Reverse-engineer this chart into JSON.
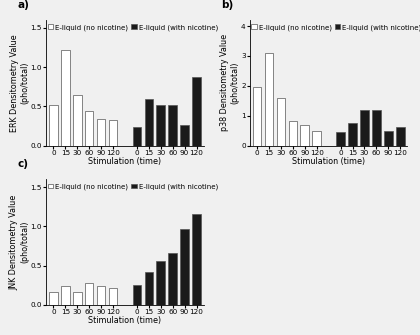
{
  "panel_a": {
    "title": "a)",
    "ylabel": "ERK Densitometry Value\n(pho/total)",
    "xlabel": "Stimulation (time)",
    "xlabels": [
      "0",
      "15",
      "30",
      "60",
      "90",
      "120",
      "0",
      "15",
      "30",
      "60",
      "90",
      "120"
    ],
    "white_bars": [
      0.52,
      1.22,
      0.65,
      0.44,
      0.34,
      0.33
    ],
    "black_bars": [
      0.24,
      0.6,
      0.52,
      0.52,
      0.26,
      0.88
    ],
    "ylim": [
      0,
      1.6
    ],
    "yticks": [
      0.0,
      0.5,
      1.0,
      1.5
    ]
  },
  "panel_b": {
    "title": "b)",
    "ylabel": "p38 Densitometry Value\n(pho/total)",
    "xlabel": "Stimulation (time)",
    "xlabels": [
      "0",
      "15",
      "30",
      "60",
      "90",
      "120",
      "0",
      "15",
      "30",
      "60",
      "90",
      "120"
    ],
    "white_bars": [
      1.95,
      3.1,
      1.58,
      0.82,
      0.7,
      0.5
    ],
    "black_bars": [
      0.46,
      0.76,
      1.18,
      1.18,
      0.5,
      0.62
    ],
    "ylim": [
      0,
      4.2
    ],
    "yticks": [
      0,
      1,
      2,
      3,
      4
    ]
  },
  "panel_c": {
    "title": "c)",
    "ylabel": "JNK Densitometry Value\n(pho/total)",
    "xlabel": "Stimulation (time)",
    "xlabels": [
      "0",
      "15",
      "30",
      "60",
      "90",
      "120",
      "0",
      "15",
      "30",
      "60",
      "90",
      "120"
    ],
    "white_bars": [
      0.16,
      0.24,
      0.16,
      0.28,
      0.24,
      0.22
    ],
    "black_bars": [
      0.25,
      0.42,
      0.56,
      0.66,
      0.97,
      1.16
    ],
    "ylim": [
      0,
      1.6
    ],
    "yticks": [
      0.0,
      0.5,
      1.0,
      1.5
    ]
  },
  "legend_white": "E-liquid (no nicotine)",
  "legend_black": "E-liquid (with nicotine)",
  "bar_width": 0.72,
  "white_color": "#ffffff",
  "black_color": "#1a1a1a",
  "edge_color": "#555555",
  "bg_color": "#f0f0f0",
  "ax_bg_color": "#f0f0f0",
  "fontsize_label": 5.8,
  "fontsize_tick": 5.2,
  "fontsize_legend": 5.0,
  "fontsize_title": 7.5
}
